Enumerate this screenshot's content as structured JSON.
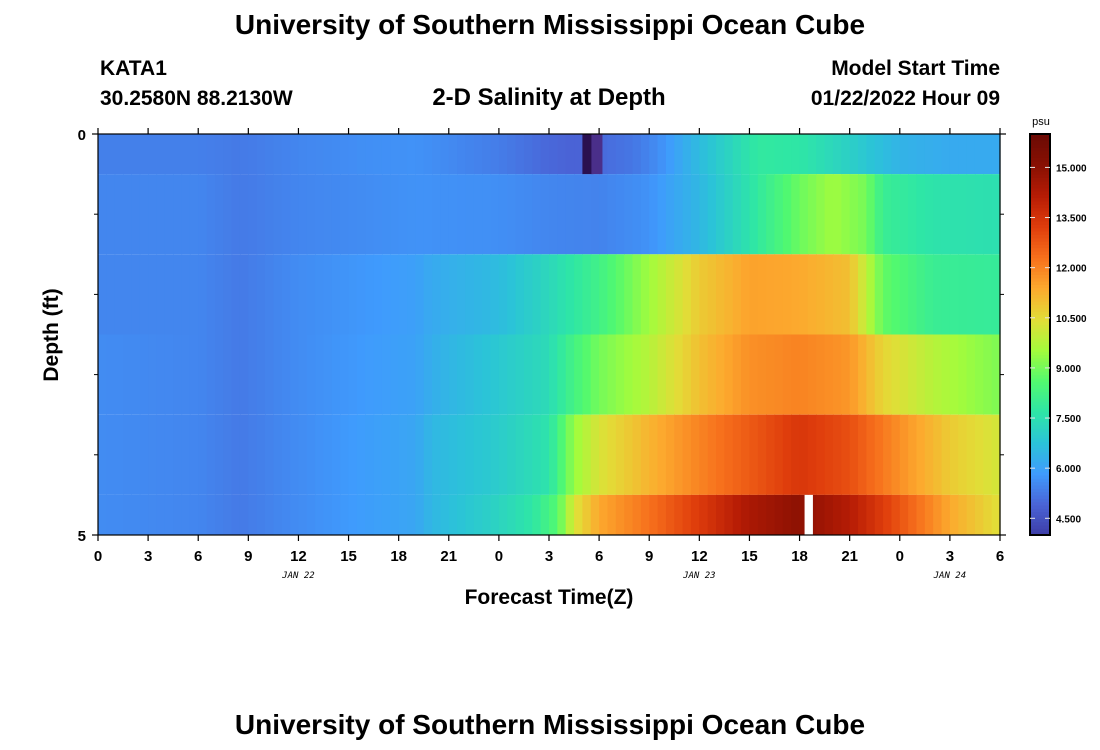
{
  "page": {
    "title": "University of Southern Mississippi Ocean Cube",
    "footer_title": "University of Southern Mississippi Ocean Cube",
    "station_id": "KATA1",
    "coords": "30.2580N  88.2130W",
    "plot_title": "2-D Salinity at Depth",
    "model_start_label": "Model Start Time",
    "model_start_value": "01/22/2022 Hour 09"
  },
  "chart_data": {
    "type": "heatmap",
    "title": "2-D Salinity at Depth",
    "xlabel": "Forecast Time(Z)",
    "ylabel": "Depth (ft)",
    "x_hours": [
      0,
      3,
      6,
      9,
      12,
      15,
      18,
      21,
      24,
      27,
      30,
      33,
      36,
      39,
      42,
      45,
      48,
      51,
      54
    ],
    "x_tick_labels": [
      "0",
      "3",
      "6",
      "9",
      "12",
      "15",
      "18",
      "21",
      "0",
      "3",
      "6",
      "9",
      "12",
      "15",
      "18",
      "21",
      "0",
      "3",
      "6"
    ],
    "date_labels": [
      {
        "label": "JAN 22",
        "hour": 12
      },
      {
        "label": "JAN 23",
        "hour": 36
      },
      {
        "label": "JAN 24",
        "hour": 51
      }
    ],
    "y_tick_labels": [
      {
        "label": "0",
        "depth": 0
      },
      {
        "label": "5",
        "depth": 5
      }
    ],
    "y_minor_ticks": [
      1,
      2,
      3,
      4
    ],
    "ylim": [
      0,
      5
    ],
    "xlim": [
      0,
      54
    ],
    "layer_boundaries_ft": [
      0,
      0.5,
      1.5,
      2.5,
      3.5,
      4.5,
      5
    ],
    "colorbar": {
      "unit": "psu",
      "min": 4.0,
      "max": 16.0,
      "tick_values": [
        4.5,
        6.0,
        7.5,
        9.0,
        10.5,
        12.0,
        13.5,
        15.0
      ],
      "tick_labels": [
        "4.500",
        "6.000",
        "7.500",
        "9.000",
        "10.500",
        "12.000",
        "13.500",
        "15.000"
      ],
      "colors": [
        "#3d3da6",
        "#4a63d6",
        "#3f9bfd",
        "#2bc3d8",
        "#2ee6a6",
        "#52f96f",
        "#a4fb3c",
        "#e2dd37",
        "#fcaa2e",
        "#f7701c",
        "#df3d0c",
        "#b71c05",
        "#891003",
        "#6b0a04"
      ]
    },
    "layers": [
      {
        "depth_top": 0.0,
        "depth_bottom": 0.5,
        "keys_hour": [
          0,
          6,
          8.5,
          12,
          16,
          19,
          24,
          27,
          28.5,
          30,
          32,
          33.5,
          36,
          39.5,
          42,
          45,
          48,
          51,
          54
        ],
        "keys_value": [
          5.4,
          5.4,
          5.3,
          5.5,
          5.65,
          5.7,
          5.35,
          5.0,
          4.9,
          5.05,
          5.25,
          5.6,
          6.6,
          7.8,
          7.7,
          7.1,
          6.4,
          6.2,
          6.2
        ],
        "dark_anomaly": {
          "hour_start": 29.0,
          "hour_end": 30.2,
          "value": 3.0
        }
      },
      {
        "depth_top": 0.5,
        "depth_bottom": 1.5,
        "keys_hour": [
          0,
          6,
          8.5,
          12,
          16,
          19,
          24,
          27,
          30,
          33,
          36,
          39,
          42,
          44,
          46,
          47,
          50,
          54
        ],
        "keys_value": [
          5.5,
          5.5,
          5.3,
          5.5,
          5.6,
          5.7,
          5.65,
          5.5,
          5.45,
          5.7,
          6.5,
          7.6,
          8.9,
          9.5,
          9.0,
          8.0,
          7.6,
          7.5
        ]
      },
      {
        "depth_top": 1.5,
        "depth_bottom": 2.5,
        "keys_hour": [
          0,
          6,
          8.5,
          12,
          16,
          19,
          20,
          24,
          27,
          30,
          33,
          36,
          39,
          42,
          45,
          47,
          50,
          54
        ],
        "keys_value": [
          5.5,
          5.5,
          5.3,
          5.6,
          5.8,
          5.95,
          6.2,
          6.6,
          7.3,
          8.2,
          9.5,
          10.8,
          11.5,
          11.4,
          11.0,
          8.8,
          8.0,
          7.9
        ]
      },
      {
        "depth_top": 2.5,
        "depth_bottom": 3.5,
        "keys_hour": [
          0,
          6,
          8.5,
          12,
          16,
          19,
          20,
          24,
          27,
          28.5,
          30,
          33,
          36,
          39,
          42,
          45,
          47,
          50,
          54
        ],
        "keys_value": [
          5.6,
          5.5,
          5.3,
          5.6,
          5.85,
          6.0,
          6.3,
          6.9,
          7.4,
          8.3,
          9.0,
          9.8,
          11.0,
          11.8,
          12.0,
          11.7,
          10.6,
          9.8,
          9.1
        ]
      },
      {
        "depth_top": 3.5,
        "depth_bottom": 4.5,
        "keys_hour": [
          0,
          6,
          8.5,
          12,
          16,
          19,
          20,
          24,
          27,
          28.5,
          30,
          33,
          36,
          39,
          42,
          45,
          48,
          51,
          54
        ],
        "keys_value": [
          5.6,
          5.5,
          5.3,
          5.6,
          5.9,
          6.1,
          6.5,
          7.0,
          7.6,
          9.4,
          10.3,
          11.2,
          12.0,
          12.7,
          13.4,
          12.9,
          11.8,
          10.8,
          10.2
        ]
      },
      {
        "depth_top": 4.5,
        "depth_bottom": 5.0,
        "keys_hour": [
          0,
          6,
          8.5,
          12,
          16,
          19,
          20,
          24,
          26,
          27.5,
          28.5,
          30,
          33,
          36,
          39,
          42,
          45,
          48,
          51,
          54
        ],
        "keys_value": [
          5.6,
          5.5,
          5.3,
          5.6,
          5.9,
          6.1,
          6.5,
          7.2,
          7.7,
          8.6,
          10.3,
          11.4,
          12.3,
          13.3,
          14.4,
          15.0,
          14.2,
          12.8,
          11.4,
          10.4
        ],
        "white_gap": {
          "hour_start": 42.3,
          "hour_end": 42.8
        }
      }
    ]
  }
}
